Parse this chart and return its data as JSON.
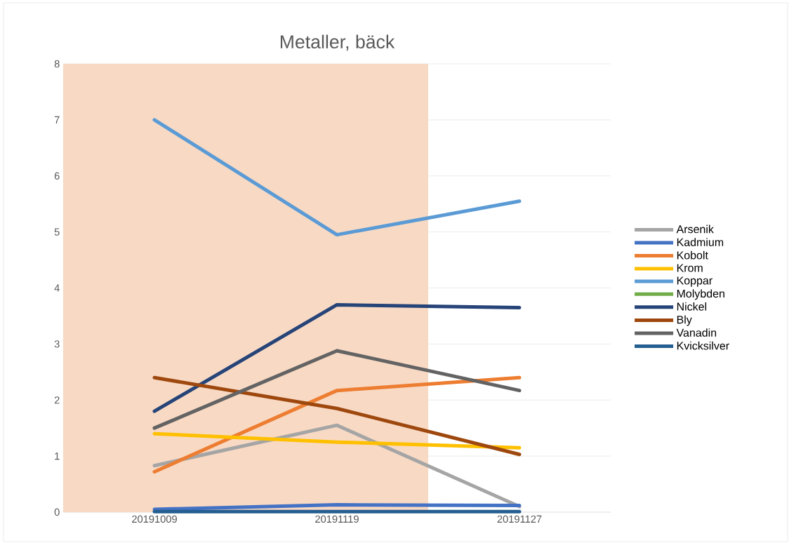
{
  "chart_data": {
    "type": "line",
    "title": "Metaller, bäck",
    "categories": [
      "20191009",
      "20191119",
      "20191127"
    ],
    "series": [
      {
        "name": "Arsenik",
        "color": "#a5a5a5",
        "values": [
          0.83,
          1.55,
          0.1
        ]
      },
      {
        "name": "Kadmium",
        "color": "#4472c4",
        "values": [
          0.05,
          0.13,
          0.12
        ]
      },
      {
        "name": "Kobolt",
        "color": "#ed7d31",
        "values": [
          0.72,
          2.17,
          2.4
        ]
      },
      {
        "name": "Krom",
        "color": "#ffc000",
        "values": [
          1.4,
          1.25,
          1.15
        ]
      },
      {
        "name": "Koppar",
        "color": "#5b9bd5",
        "values": [
          7.0,
          4.95,
          5.55
        ]
      },
      {
        "name": "Molybden",
        "color": "#70ad47",
        "values": [
          null,
          null,
          null
        ]
      },
      {
        "name": "Nickel",
        "color": "#264478",
        "values": [
          1.8,
          3.7,
          3.65
        ]
      },
      {
        "name": "Bly",
        "color": "#9e480e",
        "values": [
          2.4,
          1.85,
          1.03
        ]
      },
      {
        "name": "Vanadin",
        "color": "#636363",
        "values": [
          1.5,
          2.88,
          2.17
        ]
      },
      {
        "name": "Kvicksilver",
        "color": "#255e91",
        "values": [
          0.01,
          0.01,
          0.01
        ]
      }
    ],
    "ylim": [
      0,
      8
    ],
    "yticks": [
      0,
      1,
      2,
      3,
      4,
      5,
      6,
      7,
      8
    ],
    "grid": "y",
    "legend": "right",
    "marker": "none",
    "line_style": "solid",
    "bands": [
      {
        "axis": "x",
        "from": "20191009",
        "to": "20191119",
        "color": "#f8d9c4"
      }
    ]
  }
}
